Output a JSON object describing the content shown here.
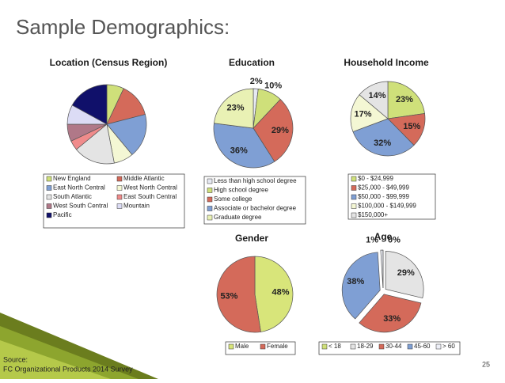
{
  "title": "Sample Demographics:",
  "source": [
    "Source:",
    "FC Organizational Products 2014 Survey"
  ],
  "page_number": 25,
  "chart_data": [
    {
      "type": "pie",
      "title": "Location (Census Region)",
      "categories": [
        "New England",
        "Middle Atlantic",
        "East North Central",
        "West North Central",
        "South Atlantic",
        "East South Central",
        "West South Central",
        "Mountain",
        "Pacific"
      ],
      "values": [
        7,
        14,
        18,
        8,
        17,
        4,
        7,
        8,
        17
      ],
      "colors": [
        "#cfe07a",
        "#d46a5a",
        "#7f9fd4",
        "#f4f7d4",
        "#e4e4e4",
        "#f08b8b",
        "#b07888",
        "#dcdcf5",
        "#10106a"
      ],
      "legend_columns": 2
    },
    {
      "type": "pie",
      "title": "Education",
      "categories": [
        "Less than high school degree",
        "High school degree",
        "Some college",
        "Associate or bachelor degree",
        "Graduate degree"
      ],
      "values": [
        2,
        10,
        29,
        36,
        23
      ],
      "value_labels": [
        "2%",
        "10%",
        "29%",
        "36%",
        "23%"
      ],
      "colors": [
        "#e6e9f2",
        "#cfe07a",
        "#d46a5a",
        "#7f9fd4",
        "#e9f1b4"
      ],
      "legend_columns": 1
    },
    {
      "type": "pie",
      "title": "Household Income",
      "categories": [
        "$0 - $24,999",
        "$25,000 - $49,999",
        "$50,000 - $99,999",
        "$100,000 - $149,999",
        "$150,000+"
      ],
      "values": [
        23,
        15,
        32,
        17,
        14
      ],
      "value_labels": [
        "23%",
        "15%",
        "32%",
        "17%",
        "14%"
      ],
      "colors": [
        "#cfe07a",
        "#d46a5a",
        "#7f9fd4",
        "#f4f7d4",
        "#e4e4e4"
      ],
      "legend_columns": 1
    },
    {
      "type": "pie",
      "title": "Gender",
      "categories": [
        "Male",
        "Female"
      ],
      "values": [
        48,
        53
      ],
      "value_labels": [
        "48%",
        "53%"
      ],
      "colors": [
        "#d8e57a",
        "#d46a5a"
      ],
      "legend_columns": 2
    },
    {
      "type": "pie",
      "title": "Age",
      "categories": [
        "< 18",
        "18-29",
        "30-44",
        "45-60",
        "> 60"
      ],
      "values": [
        0,
        29,
        33,
        38,
        1
      ],
      "value_labels": [
        "0%",
        "29%",
        "33%",
        "38%",
        "1%"
      ],
      "colors": [
        "#cfe07a",
        "#e4e4e4",
        "#d46a5a",
        "#7f9fd4",
        "#eef0f8"
      ],
      "legend_columns": 5,
      "exploded": true
    }
  ]
}
